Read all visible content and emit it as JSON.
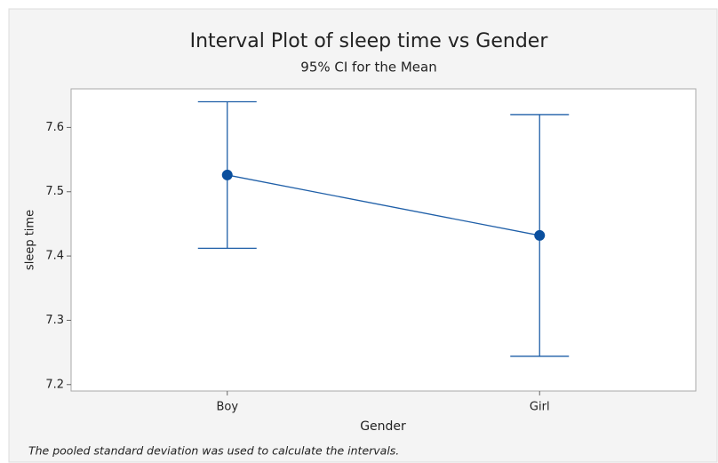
{
  "chart_data": {
    "type": "interval",
    "title": "Interval Plot of sleep time vs Gender",
    "subtitle": "95% CI for the Mean",
    "x_label": "Gender",
    "y_label": "sleep time",
    "footnote": "The pooled standard deviation was used to calculate the intervals.",
    "categories": [
      "Boy",
      "Girl"
    ],
    "values": [
      7.526,
      7.432
    ],
    "errors": [
      0.114,
      0.188
    ],
    "color": "#1f5fa8",
    "marker_color": "#0a4f9e",
    "ylim": [
      7.19,
      7.66
    ],
    "yticks": [
      7.2,
      7.3,
      7.4,
      7.5,
      7.6
    ],
    "grid": false
  }
}
